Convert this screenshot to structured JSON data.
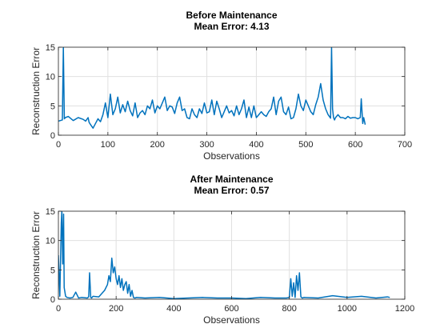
{
  "chart_data": [
    {
      "type": "line",
      "title": "Before Maintenance",
      "subtitle": "Mean Error: 4.13",
      "xlabel": "Observations",
      "ylabel": "Reconstruction Error",
      "xlim": [
        0,
        700
      ],
      "ylim": [
        0,
        15
      ],
      "xticks": [
        "0",
        "100",
        "200",
        "300",
        "400",
        "500",
        "600",
        "700"
      ],
      "yticks": [
        "0",
        "5",
        "10",
        "15"
      ],
      "grid": true,
      "color": "#0072BD",
      "series": [
        {
          "x": [
            0,
            8,
            10,
            12,
            14,
            20,
            30,
            40,
            50,
            55,
            60,
            62,
            65,
            70,
            75,
            80,
            85,
            90,
            95,
            100,
            105,
            110,
            115,
            120,
            125,
            130,
            135,
            140,
            145,
            150,
            155,
            160,
            165,
            170,
            175,
            180,
            185,
            190,
            195,
            200,
            205,
            210,
            215,
            220,
            225,
            230,
            235,
            240,
            245,
            250,
            255,
            260,
            265,
            270,
            275,
            280,
            285,
            290,
            295,
            300,
            305,
            310,
            315,
            320,
            325,
            330,
            335,
            340,
            345,
            350,
            355,
            360,
            365,
            370,
            375,
            380,
            385,
            390,
            395,
            400,
            405,
            410,
            415,
            420,
            425,
            430,
            435,
            440,
            445,
            450,
            455,
            460,
            465,
            470,
            475,
            480,
            485,
            490,
            495,
            500,
            505,
            510,
            515,
            520,
            525,
            530,
            535,
            540,
            545,
            550,
            552,
            554,
            556,
            558,
            560,
            565,
            570,
            575,
            580,
            585,
            590,
            595,
            600,
            605,
            610,
            612,
            615,
            617,
            620
          ],
          "y": [
            2.4,
            2.6,
            15,
            2.8,
            3.0,
            3.2,
            2.5,
            3.0,
            2.7,
            2.4,
            3.0,
            2.2,
            1.8,
            1.2,
            2.0,
            2.8,
            2.3,
            3.5,
            5.5,
            3.0,
            7.0,
            3.5,
            4.5,
            6.5,
            3.8,
            5.2,
            4.0,
            5.8,
            4.2,
            3.3,
            5.5,
            3.0,
            3.8,
            4.2,
            3.5,
            5.0,
            4.5,
            6.0,
            3.8,
            5.0,
            4.5,
            5.5,
            6.5,
            4.2,
            5.0,
            4.8,
            3.7,
            5.5,
            6.5,
            4.2,
            4.5,
            3.0,
            2.8,
            4.5,
            3.5,
            3.0,
            4.5,
            3.7,
            5.5,
            3.8,
            4.0,
            6.0,
            3.5,
            5.8,
            4.5,
            3.0,
            4.0,
            5.0,
            3.8,
            4.2,
            3.3,
            5.0,
            3.5,
            4.5,
            6.0,
            3.0,
            4.8,
            3.0,
            5.0,
            3.0,
            3.5,
            4.0,
            3.5,
            3.2,
            4.0,
            4.5,
            6.5,
            3.5,
            5.8,
            6.5,
            4.0,
            3.5,
            4.8,
            2.8,
            3.0,
            4.5,
            7.0,
            5.0,
            4.2,
            6.0,
            5.0,
            4.0,
            3.5,
            5.2,
            6.5,
            8.8,
            6.0,
            4.5,
            3.5,
            2.9,
            15,
            4.5,
            3.0,
            2.6,
            3.0,
            3.5,
            3.0,
            3.0,
            2.8,
            3.2,
            2.9,
            3.0,
            3.0,
            2.8,
            3.0,
            6.2,
            2.0,
            3.0,
            1.8
          ]
        }
      ]
    },
    {
      "type": "line",
      "title": "After Maintenance",
      "subtitle": "Mean Error: 0.57",
      "xlabel": "Observations",
      "ylabel": "Reconstruction Error",
      "xlim": [
        0,
        1200
      ],
      "ylim": [
        0,
        15
      ],
      "xticks": [
        "0",
        "200",
        "400",
        "600",
        "800",
        "1000",
        "1200"
      ],
      "yticks": [
        "0",
        "5",
        "10",
        "15"
      ],
      "grid": true,
      "color": "#0072BD",
      "series": [
        {
          "x": [
            0,
            5,
            8,
            10,
            12,
            15,
            18,
            20,
            25,
            30,
            40,
            50,
            60,
            70,
            80,
            100,
            105,
            108,
            112,
            115,
            120,
            140,
            160,
            170,
            175,
            180,
            185,
            190,
            195,
            200,
            205,
            210,
            215,
            220,
            225,
            230,
            235,
            240,
            245,
            250,
            255,
            260,
            265,
            270,
            300,
            350,
            400,
            450,
            500,
            550,
            600,
            650,
            700,
            750,
            790,
            800,
            805,
            810,
            815,
            820,
            825,
            830,
            835,
            840,
            845,
            850,
            900,
            950,
            1000,
            1050,
            1100,
            1140,
            1148
          ],
          "y": [
            7.5,
            0.5,
            8.0,
            13.0,
            15,
            6.0,
            14.5,
            2.0,
            0.5,
            0.3,
            0.2,
            0.3,
            1.2,
            0.2,
            0.3,
            0.2,
            0.4,
            4.5,
            0.3,
            0.2,
            0.5,
            0.4,
            1.5,
            2.5,
            4.0,
            3.0,
            7.0,
            4.5,
            5.5,
            3.5,
            2.5,
            4.0,
            2.0,
            3.5,
            1.5,
            2.5,
            3.0,
            1.0,
            2.5,
            0.5,
            1.5,
            0.3,
            0.2,
            0.3,
            0.2,
            0.3,
            0.1,
            0.2,
            0.3,
            0.2,
            0.2,
            0.1,
            0.3,
            0.2,
            0.2,
            0.3,
            3.5,
            0.5,
            2.8,
            0.3,
            4.0,
            1.5,
            4.5,
            0.4,
            0.2,
            0.3,
            0.2,
            0.6,
            0.3,
            0.5,
            0.2,
            0.4,
            0.3
          ]
        }
      ]
    }
  ]
}
